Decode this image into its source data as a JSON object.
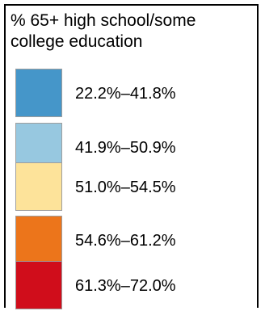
{
  "legend": {
    "title": "% 65+ high school/some college education",
    "items": [
      {
        "label": "22.2%–41.8%",
        "color": "#4596c9"
      },
      {
        "label": "41.9%–50.9%",
        "color": "#97c8e0"
      },
      {
        "label": "51.0%–54.5%",
        "color": "#fde39a"
      },
      {
        "label": "54.6%–61.2%",
        "color": "#ec751b"
      },
      {
        "label": "61.3%–72.0%",
        "color": "#d00d1b"
      }
    ]
  }
}
